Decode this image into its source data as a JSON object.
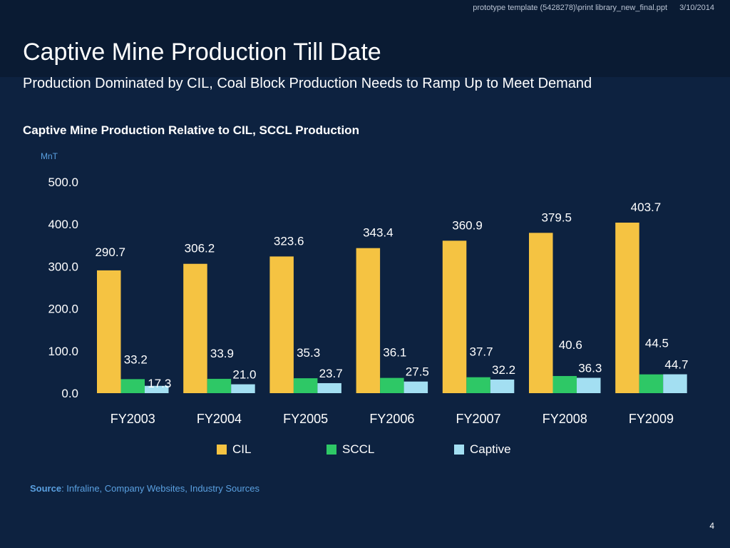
{
  "header": {
    "file_path": "prototype template (5428278)\\print library_new_final.ppt",
    "date": "3/10/2014",
    "title": "Captive Mine Production Till Date",
    "subtitle": "Production Dominated by CIL, Coal Block Production Needs to Ramp Up to Meet Demand"
  },
  "chart_heading": "Captive Mine Production Relative to CIL, SCCL Production",
  "unit_label": "MnT",
  "colors": {
    "CIL": "#f5c342",
    "SCCL": "#2ec866",
    "Captive": "#a3dff2",
    "background": "#0d2240"
  },
  "chart_data": {
    "type": "bar",
    "title": "Captive Mine Production Relative to CIL, SCCL Production",
    "ylabel": "MnT",
    "xlabel": "",
    "ylim": [
      0,
      500
    ],
    "yticks": [
      "0.0",
      "100.0",
      "200.0",
      "300.0",
      "400.0",
      "500.0"
    ],
    "grid": false,
    "legend_position": "bottom",
    "categories": [
      "FY2003",
      "FY2004",
      "FY2005",
      "FY2006",
      "FY2007",
      "FY2008",
      "FY2009"
    ],
    "series": [
      {
        "name": "CIL",
        "values": [
          290.7,
          306.2,
          323.6,
          343.4,
          360.9,
          379.5,
          403.7
        ],
        "labels": [
          "290.7",
          "306.2",
          "323.6",
          "343.4",
          "360.9",
          "379.5",
          "403.7"
        ]
      },
      {
        "name": "SCCL",
        "values": [
          33.2,
          33.9,
          35.3,
          36.1,
          37.7,
          40.6,
          44.5
        ],
        "labels": [
          "33.2",
          "33.9",
          "35.3",
          "36.1",
          "37.7",
          "40.6",
          "44.5"
        ]
      },
      {
        "name": "Captive",
        "values": [
          17.3,
          21.0,
          23.7,
          27.5,
          32.2,
          36.3,
          44.7
        ],
        "labels": [
          "17.3",
          "21.0",
          "23.7",
          "27.5",
          "32.2",
          "36.3",
          "44.7"
        ]
      }
    ]
  },
  "source": {
    "label": "Source",
    "text": ": Infraline, Company Websites, Industry Sources"
  },
  "page_number": "4"
}
